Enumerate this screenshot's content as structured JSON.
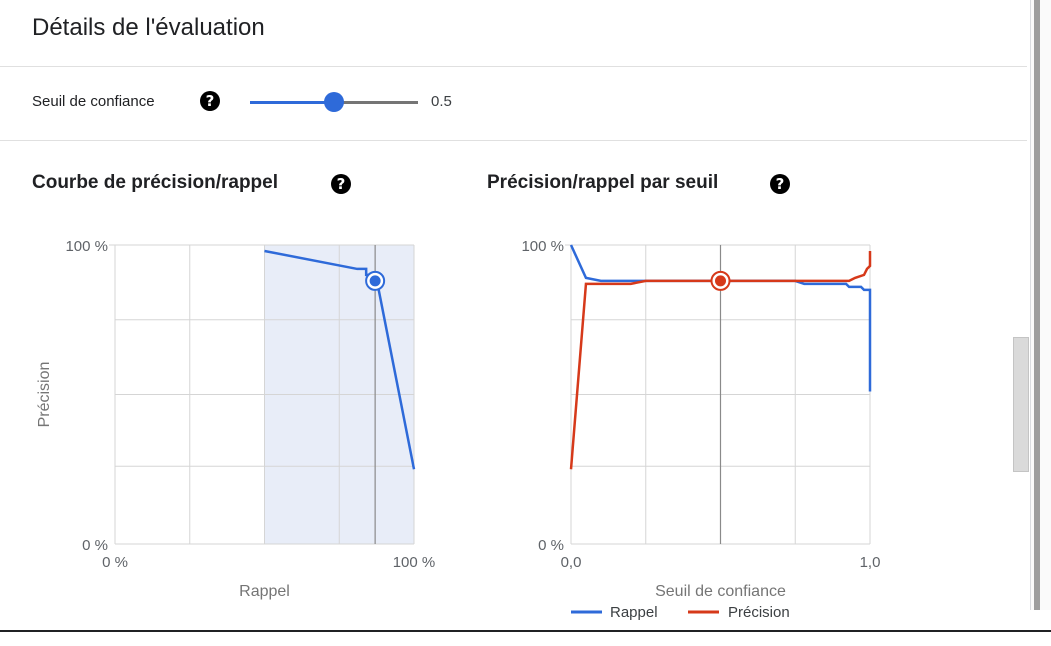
{
  "page_title": "Détails de l'évaluation",
  "threshold": {
    "label": "Seuil de confiance",
    "value_label": "0.5",
    "value": 0.5,
    "help_icon": "help-circle-icon"
  },
  "colors": {
    "accent_blue": "#2e6ad9",
    "precision_red": "#d6391a",
    "fill_blue": "#e8edf8",
    "grid": "#d5d5d5"
  },
  "chart_data": [
    {
      "type": "line",
      "title": "Courbe de précision/rappel",
      "xlabel": "Rappel",
      "ylabel": "Précision",
      "x_tick_labels": [
        "0 %",
        "100 %"
      ],
      "y_tick_labels": [
        "100 %",
        "0 %"
      ],
      "xlim": [
        0,
        1
      ],
      "ylim": [
        0,
        1
      ],
      "grid": true,
      "series": [
        {
          "x": [
            0.5,
            0.81,
            0.84,
            0.84,
            0.86,
            0.87,
            0.88,
            1.0
          ],
          "y": [
            0.98,
            0.92,
            0.92,
            0.9,
            0.9,
            0.88,
            0.86,
            0.25
          ]
        }
      ],
      "shaded_from_x": 0.5,
      "marker": {
        "x": 0.87,
        "y": 0.88
      },
      "threshold_line_x": 0.87
    },
    {
      "type": "line",
      "title": "Précision/rappel par seuil",
      "xlabel": "Seuil de confiance",
      "ylabel": "",
      "x_tick_labels": [
        "0,0",
        "1,0"
      ],
      "y_tick_labels": [
        "100 %",
        "0 %"
      ],
      "xlim": [
        0,
        1
      ],
      "ylim": [
        0,
        1
      ],
      "grid": true,
      "legend": "bottom",
      "series": [
        {
          "name": "Rappel",
          "x": [
            0.0,
            0.05,
            0.1,
            0.25,
            0.5,
            0.75,
            0.78,
            0.92,
            0.93,
            0.97,
            0.98,
            1.0,
            1.0
          ],
          "y": [
            1.0,
            0.89,
            0.88,
            0.88,
            0.88,
            0.88,
            0.87,
            0.87,
            0.86,
            0.86,
            0.85,
            0.85,
            0.51
          ]
        },
        {
          "name": "Précision",
          "x": [
            0.0,
            0.05,
            0.1,
            0.2,
            0.25,
            0.5,
            0.75,
            0.93,
            0.95,
            0.98,
            0.99,
            1.0,
            1.0
          ],
          "y": [
            0.25,
            0.87,
            0.87,
            0.87,
            0.88,
            0.88,
            0.88,
            0.88,
            0.89,
            0.9,
            0.92,
            0.93,
            0.98
          ]
        }
      ],
      "marker": {
        "x": 0.5,
        "y": 0.88
      },
      "threshold_line_x": 0.5
    }
  ]
}
